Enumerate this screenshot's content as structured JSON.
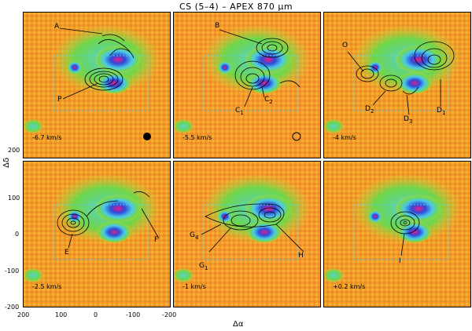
{
  "title": "CS (5–4) – APEX 870 μm",
  "axes": {
    "xlabel": "Δα",
    "ylabel": "Δδ",
    "xticks": [
      "200",
      "100",
      "0",
      "-100",
      "-200"
    ],
    "yticks": [
      "200",
      "100",
      "0",
      "-100",
      "-200"
    ]
  },
  "panels": [
    {
      "velocity": "-6.7 km/s",
      "labels": [
        "A",
        "P"
      ],
      "beam": "filled-circle"
    },
    {
      "velocity": "-5.5 km/s",
      "labels": [
        "B",
        "C1",
        "C2"
      ],
      "beam": "open-circle"
    },
    {
      "velocity": "-4 km/s",
      "labels": [
        "O",
        "D1",
        "D2",
        "D3"
      ]
    },
    {
      "velocity": "-2.5 km/s",
      "labels": [
        "E",
        "F"
      ]
    },
    {
      "velocity": "-1 km/s",
      "labels": [
        "G1",
        "G4",
        "H"
      ]
    },
    {
      "velocity": "+0.2 km/s",
      "labels": [
        "I"
      ]
    }
  ]
}
